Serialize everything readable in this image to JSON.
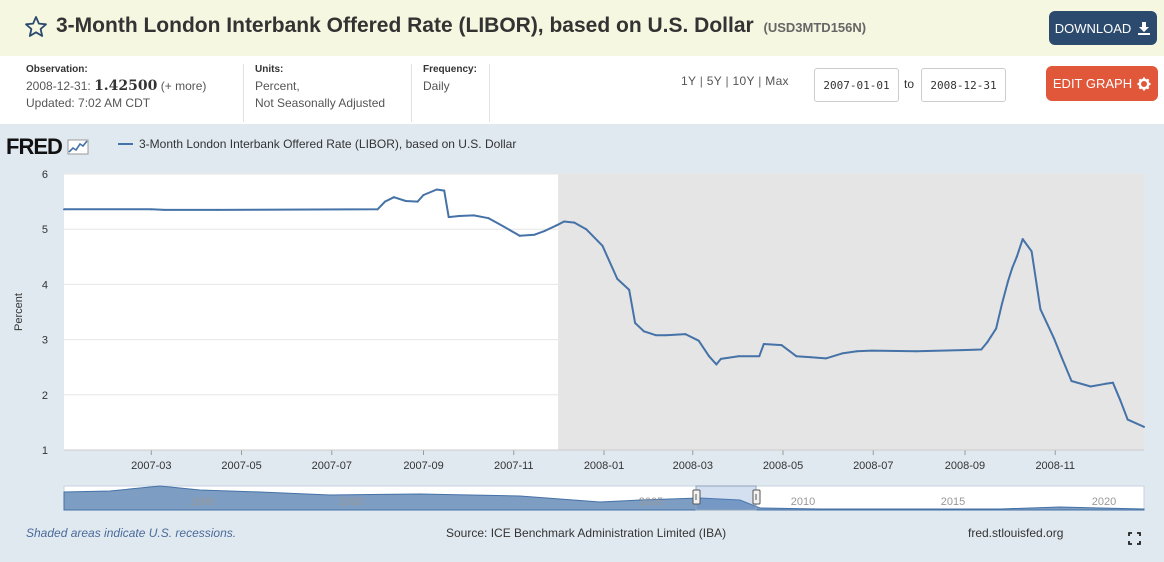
{
  "header": {
    "title": "3-Month London Interbank Offered Rate (LIBOR), based on U.S. Dollar",
    "series_id": "(USD3MTD156N)",
    "download_label": "DOWNLOAD"
  },
  "meta": {
    "observation_label": "Observation:",
    "observation_date": "2008-12-31:",
    "observation_value": "1.42500",
    "observation_more": "(+ more)",
    "updated": "Updated: 7:02 AM CDT",
    "units_label": "Units:",
    "units_line1": "Percent,",
    "units_line2": "Not Seasonally Adjusted",
    "frequency_label": "Frequency:",
    "frequency_value": "Daily",
    "range_1y": "1Y",
    "range_5y": "5Y",
    "range_10y": "10Y",
    "range_max": "Max",
    "sep": "|",
    "date_from": "2007-01-01",
    "to_label": "to",
    "date_to": "2008-12-31",
    "edit_label": "EDIT GRAPH"
  },
  "footer": {
    "recession_note": "Shaded areas indicate U.S. recessions.",
    "source": "Source: ICE Benchmark Administration Limited (IBA)",
    "site": "fred.stlouisfed.org"
  },
  "colors": {
    "line": "#4572a7",
    "recession": "#e5e5e5",
    "panel": "#e1e9f0"
  },
  "chart_data": {
    "type": "line",
    "title": "3-Month London Interbank Offered Rate (LIBOR), based on U.S. Dollar",
    "logo": "FRED",
    "legend": "3-Month London Interbank Offered Rate (LIBOR), based on U.S. Dollar",
    "xlabel": "",
    "ylabel": "Percent",
    "ylim": [
      1,
      6
    ],
    "yticks": [
      1,
      2,
      3,
      4,
      5,
      6
    ],
    "xlim": [
      "2007-01-01",
      "2008-12-31"
    ],
    "xticks": [
      "2007-03",
      "2007-05",
      "2007-07",
      "2007-09",
      "2007-11",
      "2008-01",
      "2008-03",
      "2008-05",
      "2008-07",
      "2008-09",
      "2008-11"
    ],
    "recession": [
      "2007-12-01",
      "2008-12-31"
    ],
    "navigator_ticks": [
      "1990",
      "2000",
      "2005",
      "2010",
      "2015",
      "2020"
    ],
    "series": [
      {
        "name": "3-Month London Interbank Offered Rate (LIBOR), based on U.S. Dollar",
        "x": [
          "2007-01-01",
          "2007-03-01",
          "2007-03-10",
          "2007-04-15",
          "2007-08-01",
          "2007-08-06",
          "2007-08-12",
          "2007-08-20",
          "2007-08-28",
          "2007-09-01",
          "2007-09-10",
          "2007-09-15",
          "2007-09-18",
          "2007-09-25",
          "2007-10-05",
          "2007-10-15",
          "2007-10-25",
          "2007-11-05",
          "2007-11-15",
          "2007-11-22",
          "2007-11-30",
          "2007-12-05",
          "2007-12-12",
          "2007-12-20",
          "2007-12-31",
          "2008-01-10",
          "2008-01-18",
          "2008-01-22",
          "2008-01-28",
          "2008-02-05",
          "2008-02-12",
          "2008-02-25",
          "2008-03-05",
          "2008-03-12",
          "2008-03-17",
          "2008-03-20",
          "2008-04-01",
          "2008-04-15",
          "2008-04-18",
          "2008-04-30",
          "2008-05-10",
          "2008-05-20",
          "2008-05-30",
          "2008-06-10",
          "2008-06-20",
          "2008-06-30",
          "2008-07-30",
          "2008-08-30",
          "2008-09-12",
          "2008-09-16",
          "2008-09-22",
          "2008-09-26",
          "2008-09-30",
          "2008-10-03",
          "2008-10-06",
          "2008-10-10",
          "2008-10-16",
          "2008-10-22",
          "2008-10-31",
          "2008-11-05",
          "2008-11-12",
          "2008-11-25",
          "2008-12-05",
          "2008-12-10",
          "2008-12-15",
          "2008-12-20",
          "2008-12-31"
        ],
        "values": [
          5.36,
          5.36,
          5.35,
          5.35,
          5.36,
          5.5,
          5.58,
          5.51,
          5.5,
          5.62,
          5.72,
          5.7,
          5.22,
          5.24,
          5.25,
          5.2,
          5.05,
          4.88,
          4.9,
          4.97,
          5.07,
          5.14,
          5.12,
          5.0,
          4.7,
          4.1,
          3.9,
          3.3,
          3.15,
          3.08,
          3.08,
          3.1,
          2.98,
          2.7,
          2.55,
          2.65,
          2.7,
          2.7,
          2.92,
          2.9,
          2.7,
          2.68,
          2.66,
          2.75,
          2.79,
          2.8,
          2.79,
          2.81,
          2.82,
          2.95,
          3.2,
          3.65,
          4.05,
          4.3,
          4.5,
          4.82,
          4.6,
          3.55,
          3.03,
          2.7,
          2.25,
          2.15,
          2.2,
          2.22,
          1.9,
          1.55,
          1.42
        ]
      }
    ]
  }
}
